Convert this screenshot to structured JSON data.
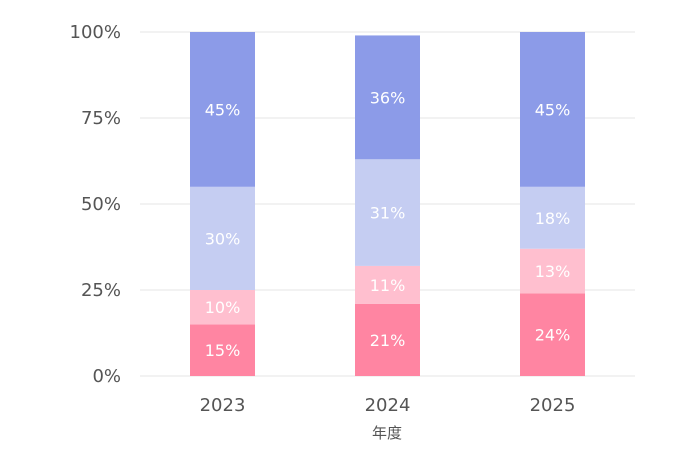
{
  "chart_data": {
    "type": "bar",
    "stacked": true,
    "percent": true,
    "categories": [
      "2023",
      "2024",
      "2025"
    ],
    "xlabel": "年度",
    "ylabel": "",
    "ylim": [
      0,
      100
    ],
    "yticks": [
      "0%",
      "25%",
      "50%",
      "75%",
      "100%"
    ],
    "grid": true,
    "series": [
      {
        "values": [
          15,
          21,
          24
        ],
        "labels": [
          "15%",
          "21%",
          "24%"
        ],
        "color": "#ff85a2"
      },
      {
        "values": [
          10,
          11,
          13
        ],
        "labels": [
          "10%",
          "11%",
          "13%"
        ],
        "color": "#ffbfcf"
      },
      {
        "values": [
          30,
          31,
          18
        ],
        "labels": [
          "30%",
          "31%",
          "18%"
        ],
        "color": "#c5cdf2"
      },
      {
        "values": [
          45,
          36,
          45
        ],
        "labels": [
          "45%",
          "36%",
          "45%"
        ],
        "color": "#8c9be8"
      }
    ]
  }
}
